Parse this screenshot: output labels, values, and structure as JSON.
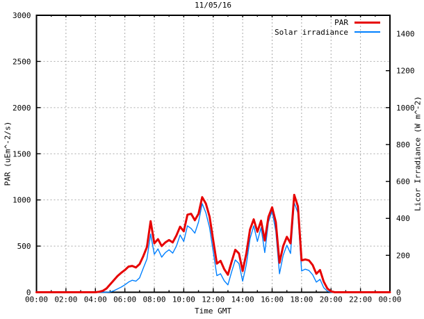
{
  "chart_data": {
    "type": "line",
    "title": "11/05/16",
    "xlabel": "Time GMT",
    "ylabel_left": "PAR (uEm^-2/s)",
    "ylabel_right": "Licor Irradiance (W m^-2)",
    "x_unit": "hours_gmt",
    "xlim": [
      0,
      24
    ],
    "ylim_left": [
      0,
      3000
    ],
    "ylim_right": [
      0,
      1500
    ],
    "x_major_step_hours": 2,
    "x_minor_step_hours": 1,
    "y_left_tick_step": 500,
    "y_right_tick_step": 200,
    "x_ticklabels": [
      "00:00",
      "02:00",
      "04:00",
      "06:00",
      "08:00",
      "10:00",
      "12:00",
      "14:00",
      "16:00",
      "18:00",
      "20:00",
      "22:00",
      "00:00"
    ],
    "y_left_ticklabels": [
      "0",
      "500",
      "1000",
      "1500",
      "2000",
      "2500",
      "3000"
    ],
    "y_right_ticklabels": [
      "0",
      "200",
      "400",
      "600",
      "800",
      "1000",
      "1200",
      "1400"
    ],
    "grid": {
      "on": true,
      "color": "#a9a9a9",
      "dash": "2 3"
    },
    "legend_position": "top-right-inside",
    "x_start_hours": 0,
    "x_step_hours": 0.25,
    "series": [
      {
        "name": "PAR",
        "axis": "left",
        "color": "#e60000",
        "width": 3,
        "values": [
          0,
          0,
          0,
          0,
          0,
          0,
          0,
          0,
          0,
          0,
          0,
          0,
          0,
          0,
          0,
          0,
          0,
          5,
          15,
          40,
          85,
          130,
          175,
          210,
          240,
          278,
          285,
          268,
          305,
          390,
          490,
          770,
          530,
          575,
          500,
          540,
          565,
          540,
          615,
          710,
          660,
          840,
          850,
          780,
          850,
          1030,
          960,
          820,
          560,
          310,
          340,
          250,
          190,
          330,
          460,
          420,
          230,
          420,
          680,
          790,
          655,
          775,
          560,
          815,
          920,
          760,
          320,
          500,
          600,
          530,
          1055,
          930,
          345,
          355,
          345,
          295,
          200,
          240,
          115,
          40,
          10,
          0,
          0,
          0,
          0,
          0,
          0,
          0,
          0,
          0,
          0,
          0,
          0,
          0,
          0,
          0,
          0
        ]
      },
      {
        "name": "Solar irradiance",
        "axis": "right",
        "color": "#0080ff",
        "width": 1.4,
        "values": [
          0,
          0,
          0,
          0,
          0,
          0,
          0,
          0,
          0,
          0,
          0,
          0,
          0,
          0,
          0,
          0,
          0,
          0,
          0,
          0,
          2,
          8,
          18,
          28,
          40,
          55,
          65,
          60,
          78,
          130,
          180,
          315,
          205,
          235,
          190,
          215,
          230,
          212,
          250,
          310,
          275,
          360,
          345,
          320,
          380,
          480,
          430,
          350,
          220,
          90,
          100,
          62,
          40,
          110,
          175,
          155,
          60,
          150,
          290,
          360,
          275,
          350,
          215,
          380,
          440,
          330,
          100,
          200,
          255,
          210,
          485,
          430,
          115,
          125,
          118,
          95,
          55,
          70,
          25,
          6,
          0,
          0,
          0,
          0,
          0,
          0,
          0,
          0,
          0,
          0,
          0,
          0,
          0,
          0,
          0,
          0,
          0
        ]
      }
    ]
  }
}
